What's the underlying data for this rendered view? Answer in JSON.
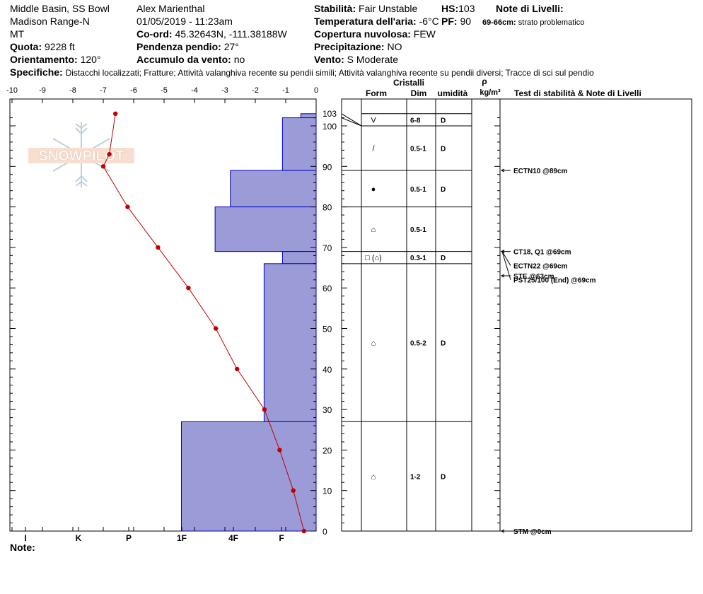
{
  "header": {
    "location": "Middle Basin, SS Bowl",
    "range": "Madison Range-N",
    "state": "MT",
    "elevation_label": "Quota:",
    "elevation_value": "9228 ft",
    "aspect_label": "Orientamento:",
    "aspect_value": "120°",
    "observer": "Alex Marienthal",
    "datetime": "01/05/2019 - 11:23am",
    "coord_label": "Co-ord:",
    "coord_value": "45.32643N, -111.38188W",
    "slope_label": "Pendenza pendio:",
    "slope_value": "27°",
    "wind_load_label": "Accumulo da vento:",
    "wind_load_value": "no",
    "stability_label": "Stabilità:",
    "stability_value": "Fair Unstable",
    "hs_label": "HS:",
    "hs_value": "103",
    "air_temp_label": "Temperatura dell'aria:",
    "air_temp_value": "-6°C",
    "pf_label": "PF:",
    "pf_value": "90",
    "cloud_label": "Copertura nuvolosa:",
    "cloud_value": "FEW",
    "precip_label": "Precipitazione:",
    "precip_value": "NO",
    "wind_label": "Vento:",
    "wind_value": "S Moderate",
    "layer_notes_label": "Note di Livelli:",
    "layer_note_range": "69-66cm:",
    "layer_note_text": "strato problematico",
    "specifics_label": "Specifiche:",
    "specifics_value": "Distacchi localizzati;  Fratture;  Attività valanghiva recente su pendii simili;  Attività valanghiva recente su pendii diversi;  Tracce di sci sul pendio"
  },
  "footer": {
    "note_label": "Note:"
  },
  "logo_text": "SNOWPILOT",
  "table_headers": {
    "crystals": "Cristalli",
    "form": "Form",
    "size": "Dim",
    "moisture": "umidità",
    "rho": "ρ",
    "density_unit": "kg/m³",
    "tests": "Test di stabilità & Note di Livelli"
  },
  "colors": {
    "hardness_fill": "#9b9bd8",
    "hardness_stroke": "#0000c0",
    "temp_line": "#c00000"
  },
  "chart_data": {
    "type": "snow_profile",
    "temperature_axis": {
      "ticks": [
        -10,
        -9,
        -8,
        -7,
        -6,
        -5,
        -4,
        -3,
        -2,
        -1,
        0
      ],
      "tick_labels": [
        "-10",
        "-9",
        "-8",
        "-7",
        "-6",
        "-5",
        "-4",
        "-3",
        "-2",
        "-1",
        "0"
      ],
      "range": [
        -10,
        0
      ]
    },
    "height_axis": {
      "ticks": [
        0,
        10,
        20,
        30,
        40,
        50,
        60,
        70,
        80,
        90,
        100
      ],
      "tick_labels": [
        "0",
        "10",
        "20",
        "30",
        "40",
        "50",
        "60",
        "70",
        "80",
        "90",
        "100"
      ],
      "top_label": "103",
      "range": [
        0,
        103
      ]
    },
    "hardness_axis": {
      "labels": [
        "I",
        "K",
        "P",
        "1F",
        "4F",
        "F"
      ]
    },
    "temperature_profile": [
      {
        "h": 103,
        "t": -6.6
      },
      {
        "h": 93,
        "t": -6.8
      },
      {
        "h": 90,
        "t": -7.0
      },
      {
        "h": 80,
        "t": -6.2
      },
      {
        "h": 70,
        "t": -5.2
      },
      {
        "h": 60,
        "t": -4.2
      },
      {
        "h": 50,
        "t": -3.3
      },
      {
        "h": 40,
        "t": -2.6
      },
      {
        "h": 30,
        "t": -1.7
      },
      {
        "h": 20,
        "t": -1.2
      },
      {
        "h": 10,
        "t": -0.75
      },
      {
        "h": 0,
        "t": -0.4
      }
    ],
    "hardness_layers": [
      {
        "top": 103,
        "bottom": 102,
        "hardness": 0.05
      },
      {
        "top": 102,
        "bottom": 89,
        "hardness": 0.11
      },
      {
        "top": 89,
        "bottom": 80,
        "hardness": 0.28
      },
      {
        "top": 80,
        "bottom": 69,
        "hardness": 0.33
      },
      {
        "top": 69,
        "bottom": 66,
        "hardness": 0.11
      },
      {
        "top": 66,
        "bottom": 27,
        "hardness": 0.17
      },
      {
        "top": 27,
        "bottom": 0,
        "hardness": 0.44
      }
    ],
    "layers": [
      {
        "top": 103,
        "bottom": 100,
        "form": "V",
        "size": "6-8",
        "moisture": "D"
      },
      {
        "top": 100,
        "bottom": 89,
        "form": "/",
        "size": "0.5-1",
        "moisture": "D"
      },
      {
        "top": 89,
        "bottom": 80,
        "form": "●",
        "size": "0.5-1",
        "moisture": "D"
      },
      {
        "top": 80,
        "bottom": 69,
        "form": "⌂",
        "size": "0.5-1",
        "moisture": ""
      },
      {
        "top": 69,
        "bottom": 66,
        "form": "□ (⌂)",
        "size": "0.3-1",
        "moisture": "D"
      },
      {
        "top": 66,
        "bottom": 27,
        "form": "⌂",
        "size": "0.5-2",
        "moisture": "D"
      },
      {
        "top": 27,
        "bottom": 0,
        "form": "⌂",
        "size": "1-2",
        "moisture": "D"
      }
    ],
    "tests": [
      {
        "h": 89,
        "label": "ECTN10 @89cm"
      },
      {
        "h": 69,
        "label": "CT18, Q1 @69cm"
      },
      {
        "h": 69,
        "label": "ECTN22 @69cm"
      },
      {
        "h": 69,
        "label": "PST25/100 (End) @69cm"
      },
      {
        "h": 63,
        "label": "STE @63cm"
      },
      {
        "h": 0,
        "label": "STM @0cm"
      }
    ]
  }
}
